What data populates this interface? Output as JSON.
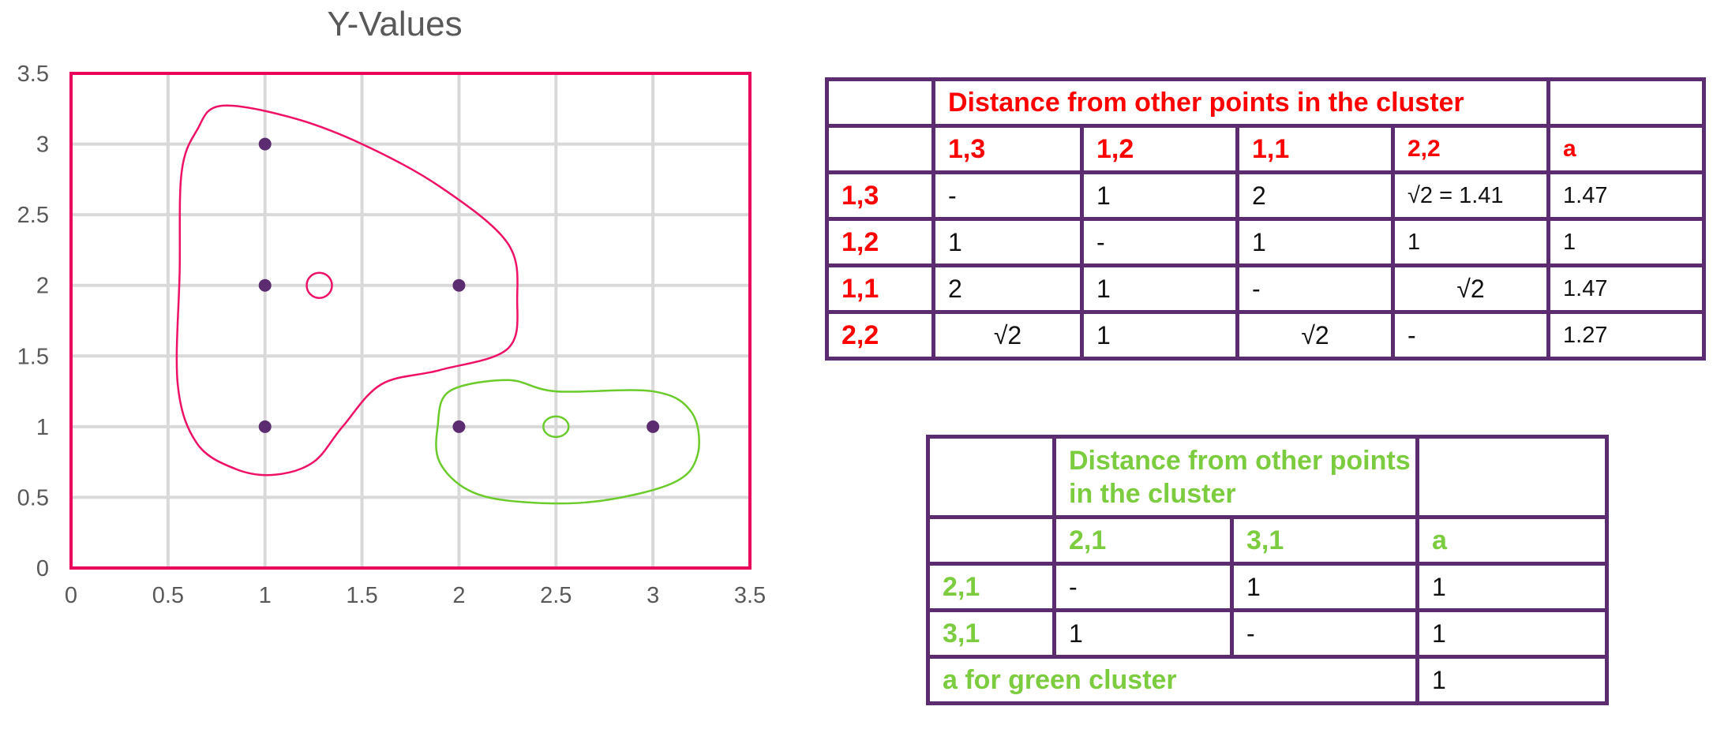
{
  "chart_data": {
    "type": "scatter",
    "title": "Y-Values",
    "xlabel": "",
    "ylabel": "",
    "xlim": [
      0,
      3.5
    ],
    "ylim": [
      0,
      3.5
    ],
    "x_ticks": [
      "0",
      "0.5",
      "1",
      "1.5",
      "2",
      "2.5",
      "3",
      "3.5"
    ],
    "y_ticks": [
      "0",
      "0.5",
      "1",
      "1.5",
      "2",
      "2.5",
      "3",
      "3.5"
    ],
    "grid": true,
    "points": [
      {
        "x": 1,
        "y": 3
      },
      {
        "x": 1,
        "y": 2
      },
      {
        "x": 2,
        "y": 2
      },
      {
        "x": 1,
        "y": 1
      },
      {
        "x": 2,
        "y": 1
      },
      {
        "x": 3,
        "y": 1
      }
    ],
    "point_color": "#5b2c6f",
    "grid_color": "#d9d9d9",
    "frame_color": "#e8005a",
    "annotations": {
      "red_cluster_color": "#ee1166",
      "green_cluster_color": "#6acb2a",
      "red_centroid": {
        "x": 1.28,
        "y": 2.0
      },
      "green_centroid": {
        "x": 2.5,
        "y": 1.0
      }
    }
  },
  "red_table": {
    "header_title": "Distance from other points in the cluster",
    "columns": [
      "1,3",
      "1,2",
      "1,1",
      "2,2",
      "a"
    ],
    "rows": [
      {
        "label": "1,3",
        "cells": [
          "-",
          "1",
          "2",
          "√2 = 1.41",
          "1.47"
        ]
      },
      {
        "label": "1,2",
        "cells": [
          "1",
          "-",
          "1",
          "1",
          "1"
        ]
      },
      {
        "label": "1,1",
        "cells": [
          "2",
          "1",
          "-",
          "√2",
          "1.47"
        ]
      },
      {
        "label": "2,2",
        "cells": [
          "√2",
          "1",
          "√2",
          "-",
          "1.27"
        ]
      }
    ]
  },
  "green_table": {
    "header_title": "Distance from other points in the cluster",
    "columns": [
      "2,1",
      "3,1",
      "a"
    ],
    "rows": [
      {
        "label": "2,1",
        "cells": [
          "-",
          "1",
          "1"
        ]
      },
      {
        "label": "3,1",
        "cells": [
          "1",
          "-",
          "1"
        ]
      }
    ],
    "footer_label": "a for green cluster",
    "footer_value": "1"
  }
}
